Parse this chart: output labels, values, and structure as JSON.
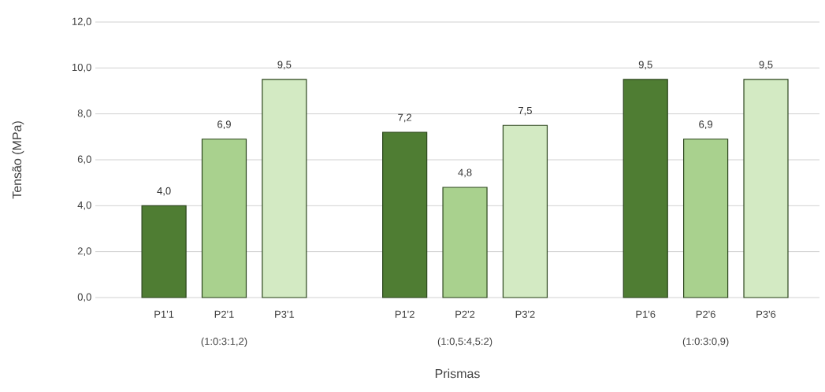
{
  "chart_data": {
    "type": "bar",
    "xlabel": "Prismas",
    "ylabel": "Tensão (MPa)",
    "categories": [
      "P1'1",
      "P2'1",
      "P3'1",
      null,
      "P1'2",
      "P2'2",
      "P3'2",
      null,
      "P1'6",
      "P2'6",
      "P3'6"
    ],
    "values": [
      4.0,
      6.9,
      9.5,
      null,
      7.2,
      4.8,
      7.5,
      null,
      9.5,
      6.9,
      9.5
    ],
    "value_labels": [
      "4,0",
      "6,9",
      "9,5",
      null,
      "7,2",
      "4,8",
      "7,5",
      null,
      "9,5",
      "6,9",
      "9,5"
    ],
    "colors": [
      "#4f7d33",
      "#a9d18e",
      "#d3eac3",
      null,
      "#4f7d33",
      "#a9d18e",
      "#d3eac3",
      null,
      "#4f7d33",
      "#a9d18e",
      "#d3eac3"
    ],
    "ylim": [
      0,
      12
    ],
    "yticks": [
      {
        "value": 0,
        "label": "0,0"
      },
      {
        "value": 2,
        "label": "2,0"
      },
      {
        "value": 4,
        "label": "4,0"
      },
      {
        "value": 6,
        "label": "6,0"
      },
      {
        "value": 8,
        "label": "8,0"
      },
      {
        "value": 10,
        "label": "10,0"
      },
      {
        "value": 12,
        "label": "12,0"
      }
    ],
    "grid": "y",
    "annotations": [
      "(1:0:3:1,2)",
      "(1:0,5:4,5:2)",
      "(1:0:3:0,9)"
    ]
  }
}
